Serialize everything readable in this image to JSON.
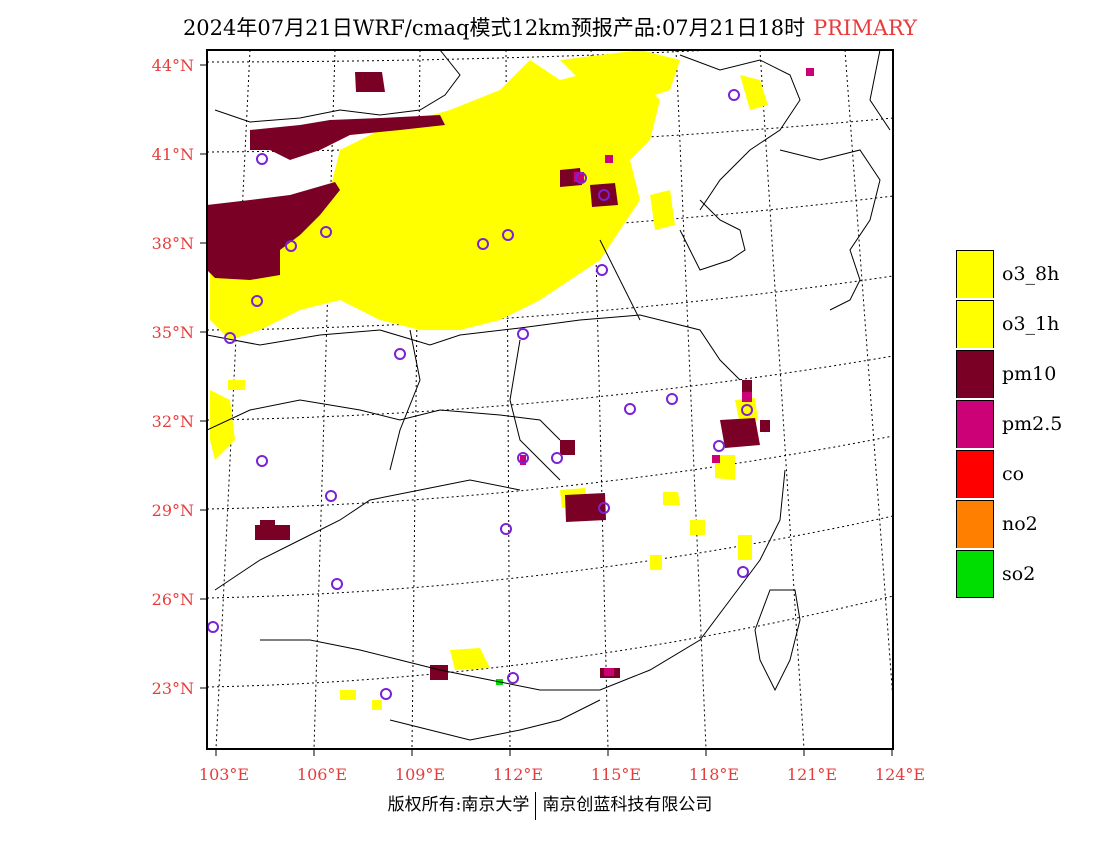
{
  "header": {
    "title": "2024年07月21日WRF/cmaq模式12km预报产品:07月21日18时",
    "tag": "PRIMARY",
    "tag_color": "#e83c3c"
  },
  "axes": {
    "lat_labels": [
      "44°N",
      "41°N",
      "38°N",
      "35°N",
      "32°N",
      "29°N",
      "26°N",
      "23°N"
    ],
    "lon_labels": [
      "103°E",
      "106°E",
      "109°E",
      "112°E",
      "115°E",
      "118°E",
      "121°E",
      "124°E"
    ]
  },
  "legend": [
    {
      "label": "o3_8h",
      "color": "#ffff00"
    },
    {
      "label": "o3_1h",
      "color": "#ffff00"
    },
    {
      "label": "pm10",
      "color": "#7a0025"
    },
    {
      "label": "pm2.5",
      "color": "#cc0077"
    },
    {
      "label": "co",
      "color": "#ff0000"
    },
    {
      "label": "no2",
      "color": "#ff8000"
    },
    {
      "label": "so2",
      "color": "#00dd00"
    }
  ],
  "footer": {
    "left": "版权所有:南京大学",
    "right": "南京创蓝科技有限公司"
  }
}
